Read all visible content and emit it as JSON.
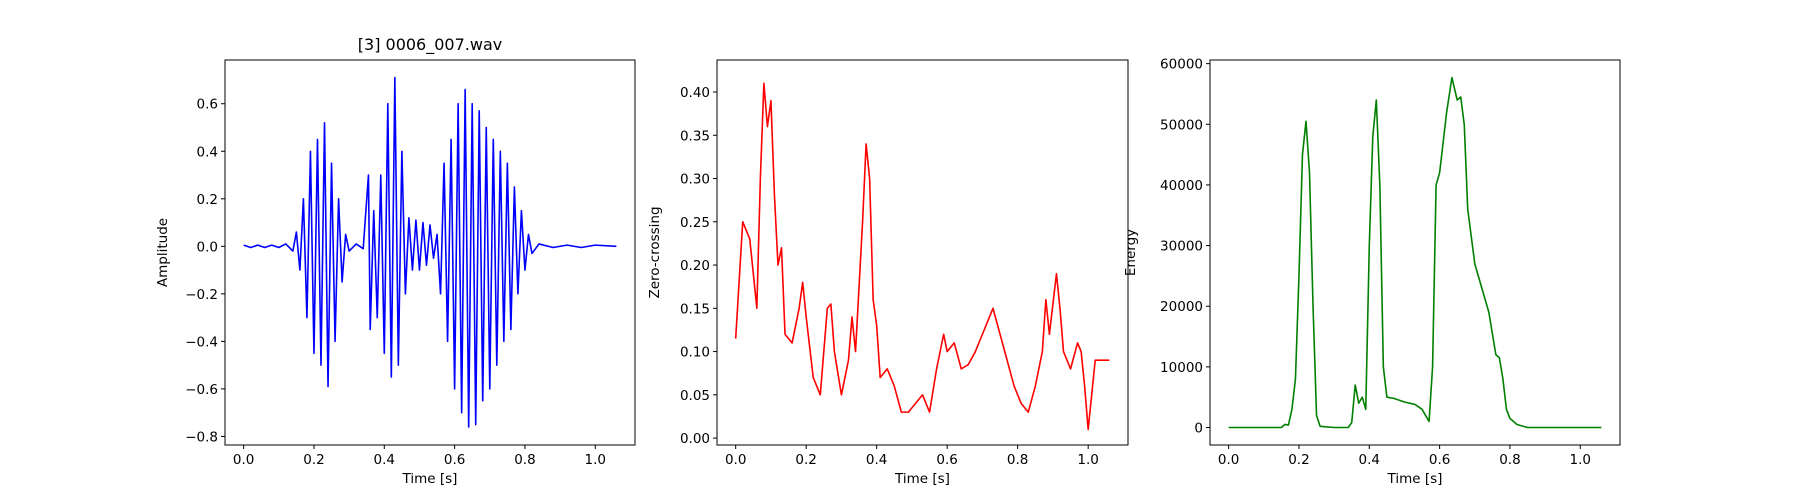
{
  "chart_data": [
    {
      "type": "line",
      "title": "[3] 0006_007.wav",
      "xlabel": "Time [s]",
      "ylabel": "Amplitude",
      "color": "#0000ff",
      "xlim": [
        -0.053,
        1.113
      ],
      "ylim": [
        -0.836,
        0.784
      ],
      "xticks": [
        {
          "value": 0,
          "label": "0.0"
        },
        {
          "value": 0.2,
          "label": "0.2"
        },
        {
          "value": 0.4,
          "label": "0.4"
        },
        {
          "value": 0.6,
          "label": "0.6"
        },
        {
          "value": 0.8,
          "label": "0.8"
        },
        {
          "value": 1,
          "label": "1.0"
        }
      ],
      "yticks": [
        {
          "value": -0.8,
          "label": "−0.8"
        },
        {
          "value": -0.6,
          "label": "−0.6"
        },
        {
          "value": -0.4,
          "label": "−0.4"
        },
        {
          "value": -0.2,
          "label": "−0.2"
        },
        {
          "value": 0,
          "label": "0.0"
        },
        {
          "value": 0.2,
          "label": "0.2"
        },
        {
          "value": 0.4,
          "label": "0.4"
        },
        {
          "value": 0.6,
          "label": "0.6"
        }
      ],
      "x": [
        0,
        0.02,
        0.04,
        0.06,
        0.08,
        0.1,
        0.12,
        0.14,
        0.15,
        0.16,
        0.17,
        0.18,
        0.19,
        0.2,
        0.21,
        0.22,
        0.23,
        0.24,
        0.25,
        0.26,
        0.27,
        0.28,
        0.29,
        0.3,
        0.32,
        0.34,
        0.355,
        0.36,
        0.37,
        0.38,
        0.39,
        0.4,
        0.41,
        0.42,
        0.43,
        0.44,
        0.45,
        0.46,
        0.47,
        0.48,
        0.49,
        0.5,
        0.51,
        0.52,
        0.53,
        0.54,
        0.55,
        0.56,
        0.57,
        0.58,
        0.59,
        0.6,
        0.61,
        0.62,
        0.63,
        0.64,
        0.65,
        0.66,
        0.67,
        0.68,
        0.69,
        0.7,
        0.71,
        0.72,
        0.73,
        0.74,
        0.75,
        0.76,
        0.77,
        0.78,
        0.79,
        0.8,
        0.81,
        0.82,
        0.84,
        0.88,
        0.92,
        0.96,
        1,
        1.06
      ],
      "values": [
        0.005,
        -0.005,
        0.005,
        -0.005,
        0.005,
        -0.005,
        0.01,
        -0.02,
        0.06,
        -0.1,
        0.2,
        -0.3,
        0.4,
        -0.45,
        0.45,
        -0.5,
        0.52,
        -0.59,
        0.35,
        -0.4,
        0.2,
        -0.15,
        0.05,
        -0.02,
        0.01,
        -0.01,
        0.3,
        -0.35,
        0.15,
        -0.3,
        0.3,
        -0.45,
        0.6,
        -0.55,
        0.71,
        -0.5,
        0.4,
        -0.2,
        0.12,
        -0.1,
        0.11,
        -0.1,
        0.1,
        -0.08,
        0.09,
        -0.05,
        0.05,
        -0.2,
        0.35,
        -0.4,
        0.45,
        -0.6,
        0.6,
        -0.7,
        0.66,
        -0.76,
        0.6,
        -0.75,
        0.57,
        -0.65,
        0.5,
        -0.6,
        0.45,
        -0.5,
        0.4,
        -0.4,
        0.35,
        -0.35,
        0.25,
        -0.2,
        0.15,
        -0.1,
        0.05,
        -0.03,
        0.01,
        -0.005,
        0.005,
        -0.005,
        0.005,
        0
      ]
    },
    {
      "type": "line",
      "xlabel": "Time [s]",
      "ylabel": "Zero-crossing",
      "color": "#ff0000",
      "xlim": [
        -0.053,
        1.113
      ],
      "ylim": [
        -0.008,
        0.437
      ],
      "xticks": [
        {
          "value": 0,
          "label": "0.0"
        },
        {
          "value": 0.2,
          "label": "0.2"
        },
        {
          "value": 0.4,
          "label": "0.4"
        },
        {
          "value": 0.6,
          "label": "0.6"
        },
        {
          "value": 0.8,
          "label": "0.8"
        },
        {
          "value": 1,
          "label": "1.0"
        }
      ],
      "yticks": [
        {
          "value": 0,
          "label": "0.00"
        },
        {
          "value": 0.05,
          "label": "0.05"
        },
        {
          "value": 0.1,
          "label": "0.10"
        },
        {
          "value": 0.15,
          "label": "0.15"
        },
        {
          "value": 0.2,
          "label": "0.20"
        },
        {
          "value": 0.25,
          "label": "0.25"
        },
        {
          "value": 0.3,
          "label": "0.30"
        },
        {
          "value": 0.35,
          "label": "0.35"
        },
        {
          "value": 0.4,
          "label": "0.40"
        }
      ],
      "x": [
        0,
        0.02,
        0.04,
        0.06,
        0.07,
        0.08,
        0.09,
        0.1,
        0.11,
        0.12,
        0.13,
        0.14,
        0.16,
        0.18,
        0.19,
        0.2,
        0.22,
        0.24,
        0.26,
        0.27,
        0.28,
        0.3,
        0.32,
        0.33,
        0.34,
        0.36,
        0.37,
        0.38,
        0.39,
        0.4,
        0.41,
        0.43,
        0.45,
        0.47,
        0.49,
        0.51,
        0.53,
        0.55,
        0.57,
        0.59,
        0.6,
        0.62,
        0.64,
        0.66,
        0.68,
        0.7,
        0.72,
        0.73,
        0.75,
        0.77,
        0.79,
        0.81,
        0.83,
        0.85,
        0.87,
        0.88,
        0.89,
        0.91,
        0.92,
        0.93,
        0.95,
        0.97,
        0.98,
        0.99,
        1,
        1.01,
        1.02,
        1.04,
        1.06
      ],
      "values": [
        0.115,
        0.25,
        0.23,
        0.15,
        0.3,
        0.41,
        0.36,
        0.39,
        0.28,
        0.2,
        0.22,
        0.12,
        0.11,
        0.15,
        0.18,
        0.14,
        0.07,
        0.05,
        0.15,
        0.155,
        0.1,
        0.05,
        0.09,
        0.14,
        0.1,
        0.25,
        0.34,
        0.3,
        0.16,
        0.13,
        0.07,
        0.08,
        0.06,
        0.03,
        0.03,
        0.04,
        0.05,
        0.03,
        0.08,
        0.12,
        0.1,
        0.11,
        0.08,
        0.085,
        0.1,
        0.12,
        0.14,
        0.15,
        0.12,
        0.09,
        0.06,
        0.04,
        0.03,
        0.06,
        0.1,
        0.16,
        0.12,
        0.19,
        0.15,
        0.1,
        0.08,
        0.11,
        0.1,
        0.06,
        0.01,
        0.05,
        0.09,
        0.09,
        0.09
      ]
    },
    {
      "type": "line",
      "xlabel": "Time [s]",
      "ylabel": "Energy",
      "color": "#008000",
      "xlim": [
        -0.053,
        1.113
      ],
      "ylim": [
        -2885,
        60600
      ],
      "xticks": [
        {
          "value": 0,
          "label": "0.0"
        },
        {
          "value": 0.2,
          "label": "0.2"
        },
        {
          "value": 0.4,
          "label": "0.4"
        },
        {
          "value": 0.6,
          "label": "0.6"
        },
        {
          "value": 0.8,
          "label": "0.8"
        },
        {
          "value": 1,
          "label": "1.0"
        }
      ],
      "yticks": [
        0,
        10000,
        20000,
        30000,
        40000,
        50000,
        60000
      ],
      "x": [
        0,
        0.1,
        0.15,
        0.16,
        0.17,
        0.18,
        0.19,
        0.2,
        0.21,
        0.22,
        0.23,
        0.24,
        0.25,
        0.26,
        0.3,
        0.34,
        0.35,
        0.36,
        0.37,
        0.38,
        0.39,
        0.4,
        0.41,
        0.42,
        0.43,
        0.44,
        0.45,
        0.47,
        0.5,
        0.53,
        0.55,
        0.57,
        0.58,
        0.59,
        0.6,
        0.62,
        0.635,
        0.65,
        0.66,
        0.67,
        0.68,
        0.7,
        0.72,
        0.74,
        0.76,
        0.77,
        0.78,
        0.79,
        0.8,
        0.82,
        0.85,
        1.06
      ],
      "values": [
        0,
        0,
        0,
        500,
        400,
        3000,
        8000,
        25000,
        45000,
        50500,
        42000,
        20000,
        2000,
        200,
        0,
        0,
        800,
        7000,
        4000,
        5000,
        3000,
        30000,
        48000,
        54000,
        40000,
        10000,
        5000,
        4800,
        4200,
        3800,
        3000,
        1000,
        10000,
        40000,
        42000,
        52000,
        57700,
        54000,
        54500,
        50000,
        36000,
        27000,
        23000,
        19000,
        12000,
        11500,
        8000,
        3000,
        1500,
        500,
        0,
        0
      ]
    }
  ]
}
